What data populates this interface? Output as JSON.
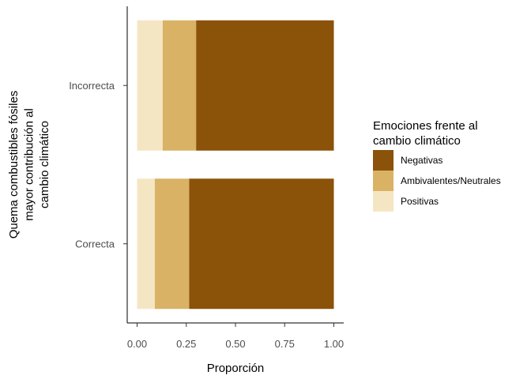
{
  "chart_data": {
    "type": "bar",
    "orientation": "horizontal",
    "stacked": true,
    "categories": [
      "Correcta",
      "Incorrecta"
    ],
    "series": [
      {
        "name": "Positivas",
        "color": "#F5E6C3",
        "values": [
          0.09,
          0.13
        ]
      },
      {
        "name": "Ambivalentes/Neutrales",
        "color": "#D9B266",
        "values": [
          0.175,
          0.17
        ]
      },
      {
        "name": "Negativas",
        "color": "#8B5209",
        "values": [
          0.735,
          0.7
        ]
      }
    ],
    "xlabel": "Proporción",
    "ylabel_lines": [
      "Quema combustibles fósiles",
      "mayor contribución al",
      "cambio climático"
    ],
    "xlim": [
      0,
      1
    ],
    "xticks": [
      0,
      0.25,
      0.5,
      0.75,
      1
    ],
    "xtick_labels": [
      "0.00",
      "0.25",
      "0.50",
      "0.75",
      "1.00"
    ],
    "legend": {
      "title_lines": [
        "Emociones frente al",
        "cambio climático"
      ],
      "order": [
        "Negativas",
        "Ambivalentes/Neutrales",
        "Positivas"
      ],
      "placement": "right"
    },
    "grid": false
  }
}
